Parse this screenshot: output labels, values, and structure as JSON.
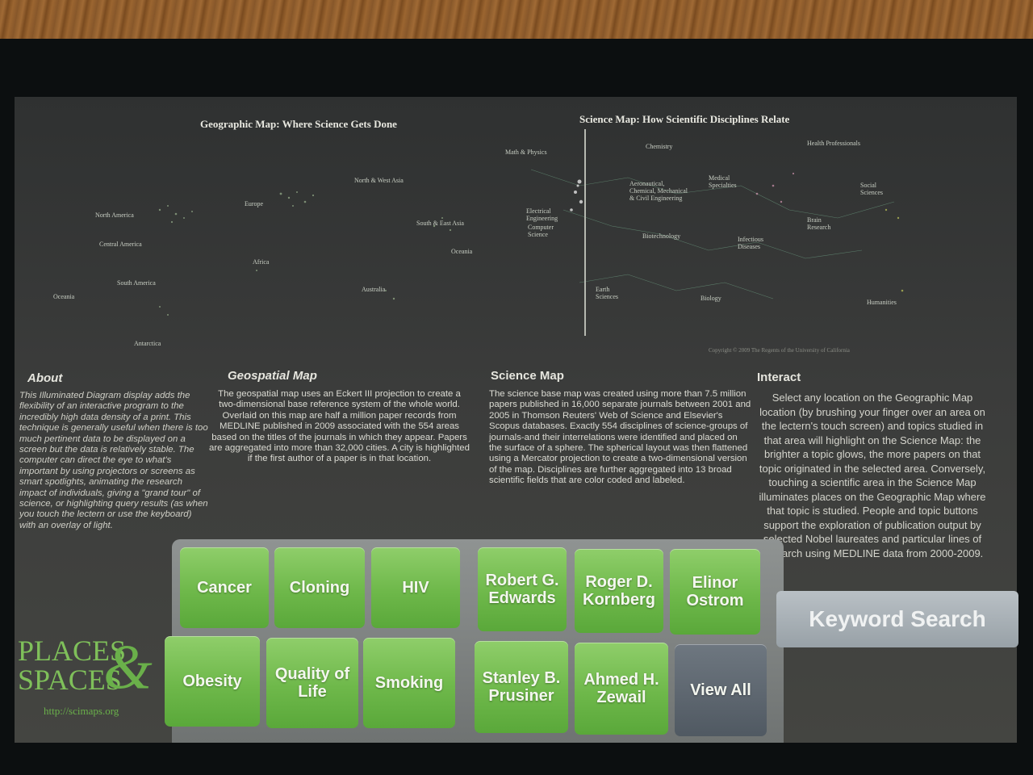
{
  "maps": {
    "geo_title": "Geographic Map: Where Science Gets Done",
    "sci_title": "Science Map: How Scientific Disciplines Relate",
    "geo_labels": {
      "north_america": "North America",
      "central_america": "Central America",
      "south_america": "South America",
      "oceania_left": "Oceania",
      "antarctica": "Antarctica",
      "europe": "Europe",
      "africa": "Africa",
      "north_west_asia": "North & West Asia",
      "south_east_asia": "South & East Asia",
      "oceania": "Oceania",
      "australia": "Australia"
    },
    "sci_labels": {
      "math_physics": "Math & Physics",
      "electrical_engineering": "Electrical Engineering",
      "computer_science": "Computer Science",
      "chemistry": "Chemistry",
      "aeronautical": "Aeronautical, Chemical, Mechanical & Civil Engineering",
      "medical_specialties": "Medical Specialties",
      "health_professionals": "Health Professionals",
      "social_sciences": "Social Sciences",
      "biotechnology": "Biotechnology",
      "brain_research": "Brain Research",
      "infectious_diseases": "Infectious Diseases",
      "earth_sciences": "Earth Sciences",
      "biology": "Biology",
      "humanities": "Humanities"
    },
    "copyright": "Copyright © 2009 The Regents of the University of California"
  },
  "about": {
    "heading": "About",
    "body": "This Illuminated Diagram display adds the flexibility of an interactive program to the incredibly high data density of a print. This technique is generally useful when there is too much pertinent data to be displayed on a screen but the data is relatively stable. The computer can direct the eye to what's important by using projectors or screens as smart spotlights, animating the research impact of individuals, giving a \"grand tour\" of science, or highlighting query results (as when you touch the lectern or use the keyboard) with an overlay of light."
  },
  "geospatial": {
    "heading": "Geospatial Map",
    "body": "The geospatial map uses an Eckert III projection to create a two-dimensional base reference system of the whole world. Overlaid on this map are half a million paper records from MEDLINE published in 2009 associated with the 554 areas based on the titles of the journals in which they appear. Papers are aggregated into more than 32,000 cities. A city is highlighted if the first author of a paper is in that location."
  },
  "science": {
    "heading": "Science Map",
    "body": "The science base map was created using more than 7.5 million papers published in 16,000 separate journals between 2001 and 2005 in Thomson Reuters' Web of Science and Elsevier's Scopus databases. Exactly 554 disciplines of science-groups of journals-and their interrelations were identified and placed on the surface of a sphere. The spherical layout was then flattened using a Mercator projection to create a two-dimensional version of the map. Disciplines are further aggregated into 13 broad scientific fields that are color coded and labeled."
  },
  "interact": {
    "heading": "Interact",
    "body": "Select any location on the Geographic Map location (by brushing your finger over an area on the lectern's touch screen) and topics studied in that area will highlight on the Science Map: the brighter a topic glows, the more papers on that topic originated in the selected area. Conversely, touching a scientific area in the Science Map illuminates places on the Geographic Map where that topic is studied. People and topic buttons support the exploration of publication output by selected Nobel laureates and particular lines of research using MEDLINE data from 2000-2009."
  },
  "buttons": {
    "cancer": "Cancer",
    "cloning": "Cloning",
    "hiv": "HIV",
    "robert_edwards": "Robert G. Edwards",
    "roger_kornberg": "Roger D. Kornberg",
    "elinor_ostrom": "Elinor Ostrom",
    "obesity": "Obesity",
    "quality_of_life": "Quality of Life",
    "smoking": "Smoking",
    "stanley_prusiner": "Stanley B. Prusiner",
    "ahmed_zewail": "Ahmed H. Zewail",
    "view_all": "View All",
    "keyword_search": "Keyword Search"
  },
  "logo": {
    "line1": "PLACES",
    "line2": "SPACES",
    "amp": "&",
    "url": "http://scimaps.org"
  },
  "colors": {
    "button_green": "#6eb84a",
    "button_gray": "#5a636b",
    "logo_green": "#7fc05a"
  }
}
